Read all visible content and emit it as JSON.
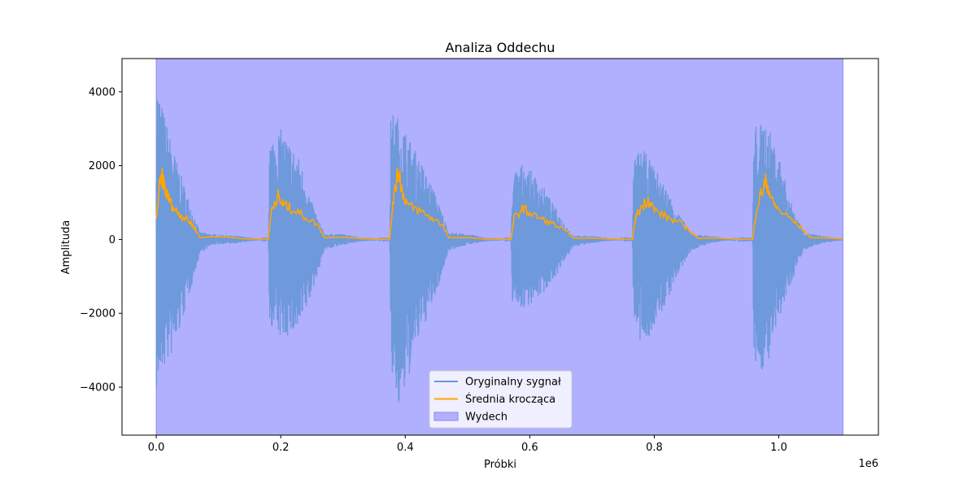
{
  "chart_data": {
    "type": "line",
    "title": "Analiza Oddechu",
    "xlabel": "Próbki",
    "ylabel": "Amplituda",
    "x_offset_label": "1e6",
    "xlim": [
      -0.055,
      1.16
    ],
    "ylim": [
      -5300,
      4900
    ],
    "x_ticks": [
      0.0,
      0.2,
      0.4,
      0.6,
      0.8,
      1.0
    ],
    "x_tick_labels": [
      "0.0",
      "0.2",
      "0.4",
      "0.6",
      "0.8",
      "1.0"
    ],
    "y_ticks": [
      -4000,
      -2000,
      0,
      2000,
      4000
    ],
    "y_tick_labels": [
      "−4000",
      "−2000",
      "0",
      "2000",
      "4000"
    ],
    "grid": false,
    "legend_position": "lower center",
    "series": [
      {
        "name": "Oryginalny sygnał",
        "color": "#6a98d8",
        "kind": "signal-envelope",
        "x_range": [
          0.0,
          1.103
        ],
        "envelope": [
          [
            0.0,
            4400,
            -4100
          ],
          [
            0.01,
            3600,
            -3600
          ],
          [
            0.03,
            2300,
            -3000
          ],
          [
            0.05,
            1200,
            -1700
          ],
          [
            0.07,
            200,
            -400
          ],
          [
            0.09,
            150,
            -150
          ],
          [
            0.13,
            100,
            -100
          ],
          [
            0.16,
            30,
            -30
          ],
          [
            0.18,
            10,
            -10
          ],
          [
            0.182,
            2700,
            -2300
          ],
          [
            0.2,
            3000,
            -2700
          ],
          [
            0.23,
            2200,
            -2500
          ],
          [
            0.25,
            1000,
            -1500
          ],
          [
            0.27,
            150,
            -300
          ],
          [
            0.3,
            150,
            -150
          ],
          [
            0.33,
            50,
            -50
          ],
          [
            0.375,
            10,
            -10
          ],
          [
            0.377,
            3500,
            -3500
          ],
          [
            0.39,
            3300,
            -4800
          ],
          [
            0.42,
            2300,
            -2800
          ],
          [
            0.45,
            1200,
            -1500
          ],
          [
            0.47,
            200,
            -300
          ],
          [
            0.5,
            150,
            -150
          ],
          [
            0.53,
            50,
            -50
          ],
          [
            0.57,
            10,
            -10
          ],
          [
            0.572,
            1800,
            -1700
          ],
          [
            0.59,
            2100,
            -1900
          ],
          [
            0.62,
            1500,
            -1500
          ],
          [
            0.65,
            600,
            -800
          ],
          [
            0.67,
            100,
            -200
          ],
          [
            0.7,
            100,
            -100
          ],
          [
            0.73,
            30,
            -30
          ],
          [
            0.765,
            10,
            -10
          ],
          [
            0.767,
            2200,
            -2400
          ],
          [
            0.78,
            2500,
            -3000
          ],
          [
            0.81,
            1700,
            -2100
          ],
          [
            0.84,
            700,
            -900
          ],
          [
            0.86,
            150,
            -300
          ],
          [
            0.89,
            100,
            -100
          ],
          [
            0.92,
            30,
            -30
          ],
          [
            0.958,
            10,
            -10
          ],
          [
            0.96,
            3100,
            -3400
          ],
          [
            0.98,
            3200,
            -3600
          ],
          [
            1.0,
            2300,
            -2300
          ],
          [
            1.02,
            1000,
            -1200
          ],
          [
            1.04,
            200,
            -300
          ],
          [
            1.07,
            100,
            -100
          ],
          [
            1.103,
            20,
            -20
          ]
        ]
      },
      {
        "name": "Średnia krocząca",
        "color": "#ffa500",
        "kind": "line",
        "points": [
          [
            0.0,
            500
          ],
          [
            0.005,
            1400
          ],
          [
            0.01,
            1700
          ],
          [
            0.015,
            1300
          ],
          [
            0.02,
            1100
          ],
          [
            0.03,
            800
          ],
          [
            0.04,
            650
          ],
          [
            0.05,
            550
          ],
          [
            0.06,
            350
          ],
          [
            0.07,
            50
          ],
          [
            0.09,
            80
          ],
          [
            0.12,
            60
          ],
          [
            0.14,
            20
          ],
          [
            0.18,
            0
          ],
          [
            0.185,
            800
          ],
          [
            0.195,
            1200
          ],
          [
            0.2,
            1000
          ],
          [
            0.21,
            900
          ],
          [
            0.22,
            800
          ],
          [
            0.24,
            600
          ],
          [
            0.26,
            400
          ],
          [
            0.27,
            50
          ],
          [
            0.3,
            60
          ],
          [
            0.34,
            10
          ],
          [
            0.375,
            0
          ],
          [
            0.38,
            1000
          ],
          [
            0.385,
            1500
          ],
          [
            0.39,
            1900
          ],
          [
            0.395,
            1300
          ],
          [
            0.405,
            900
          ],
          [
            0.42,
            800
          ],
          [
            0.44,
            600
          ],
          [
            0.46,
            400
          ],
          [
            0.47,
            50
          ],
          [
            0.5,
            50
          ],
          [
            0.53,
            10
          ],
          [
            0.57,
            0
          ],
          [
            0.575,
            600
          ],
          [
            0.59,
            850
          ],
          [
            0.6,
            700
          ],
          [
            0.62,
            550
          ],
          [
            0.64,
            400
          ],
          [
            0.66,
            200
          ],
          [
            0.67,
            30
          ],
          [
            0.7,
            40
          ],
          [
            0.73,
            10
          ],
          [
            0.765,
            0
          ],
          [
            0.77,
            600
          ],
          [
            0.78,
            900
          ],
          [
            0.79,
            1100
          ],
          [
            0.8,
            800
          ],
          [
            0.82,
            600
          ],
          [
            0.84,
            450
          ],
          [
            0.86,
            200
          ],
          [
            0.87,
            30
          ],
          [
            0.9,
            40
          ],
          [
            0.93,
            10
          ],
          [
            0.958,
            0
          ],
          [
            0.965,
            900
          ],
          [
            0.975,
            1400
          ],
          [
            0.98,
            1600
          ],
          [
            0.99,
            1000
          ],
          [
            1.0,
            800
          ],
          [
            1.02,
            550
          ],
          [
            1.04,
            250
          ],
          [
            1.05,
            50
          ],
          [
            1.08,
            40
          ],
          [
            1.103,
            10
          ]
        ]
      },
      {
        "name": "Wydech",
        "color": "#b0b0ff",
        "edge_color": "#8a8ae8",
        "kind": "span",
        "x_range": [
          0.0,
          1.103
        ]
      }
    ]
  }
}
